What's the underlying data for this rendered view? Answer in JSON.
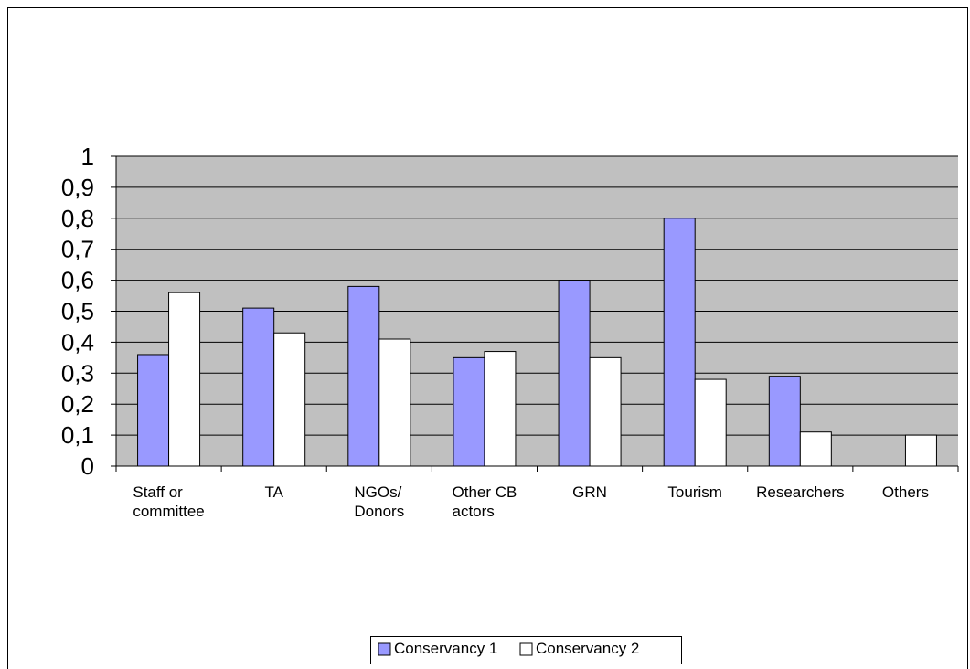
{
  "chart_data": {
    "type": "bar",
    "categories": [
      "Staff or\ncommittee",
      "TA",
      "NGOs/\nDonors",
      "Other CB\nactors",
      "GRN",
      "Tourism",
      "Researchers",
      "Others"
    ],
    "series": [
      {
        "name": "Conservancy 1",
        "color": "#9999ff",
        "values": [
          0.36,
          0.51,
          0.58,
          0.35,
          0.6,
          0.8,
          0.29,
          null
        ]
      },
      {
        "name": "Conservancy 2",
        "color": "#ffffff",
        "values": [
          0.56,
          0.43,
          0.41,
          0.37,
          0.35,
          0.28,
          0.11,
          0.1
        ]
      }
    ],
    "ylim": [
      0,
      1
    ],
    "yticks": [
      0,
      {
        "value": 0.1,
        "label": "0,1"
      },
      {
        "value": 0.2,
        "label": "0,2"
      },
      {
        "value": 0.3,
        "label": "0,3"
      },
      {
        "value": 0.4,
        "label": "0,4"
      },
      {
        "value": 0.5,
        "label": "0,5"
      },
      {
        "value": 0.6,
        "label": "0,6"
      },
      {
        "value": 0.7,
        "label": "0,7"
      },
      {
        "value": 0.8,
        "label": "0,8"
      },
      {
        "value": 0.9,
        "label": "0,9"
      },
      1
    ],
    "grid": true,
    "legend": "bottom",
    "plot_background": "#c0c0c0"
  }
}
